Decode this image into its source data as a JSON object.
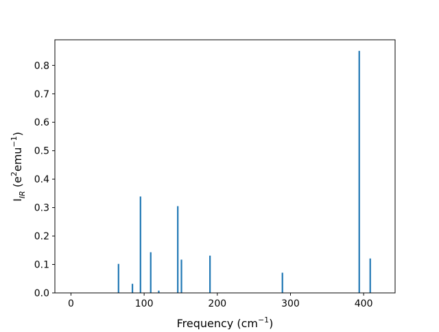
{
  "chart_data": {
    "type": "bar",
    "xlabel": {
      "pre": "Frequency (cm",
      "sup": "−1",
      "post": ")"
    },
    "ylabel": {
      "a": "I",
      "a_sub": "IR",
      "b": " (e",
      "b_sup": "2",
      "c": "emu",
      "c_sup": "−1",
      "d": ")"
    },
    "xlim": [
      -22,
      443
    ],
    "ylim": [
      0,
      0.89
    ],
    "xticks": [
      0,
      100,
      200,
      300,
      400
    ],
    "xtick_labels": [
      "0",
      "100",
      "200",
      "300",
      "400"
    ],
    "yticks": [
      0.0,
      0.1,
      0.2,
      0.3,
      0.4,
      0.5,
      0.6,
      0.7,
      0.8
    ],
    "ytick_labels": [
      "0.0",
      "0.1",
      "0.2",
      "0.3",
      "0.4",
      "0.5",
      "0.6",
      "0.7",
      "0.8"
    ],
    "grid": false,
    "color": "#1f77b4",
    "bars": [
      {
        "x": 65,
        "y": 0.102
      },
      {
        "x": 84,
        "y": 0.032
      },
      {
        "x": 95,
        "y": 0.339
      },
      {
        "x": 109,
        "y": 0.143
      },
      {
        "x": 120,
        "y": 0.008
      },
      {
        "x": 146,
        "y": 0.305
      },
      {
        "x": 151,
        "y": 0.117
      },
      {
        "x": 190,
        "y": 0.131
      },
      {
        "x": 289,
        "y": 0.071
      },
      {
        "x": 394,
        "y": 0.851
      },
      {
        "x": 409,
        "y": 0.121
      }
    ]
  }
}
